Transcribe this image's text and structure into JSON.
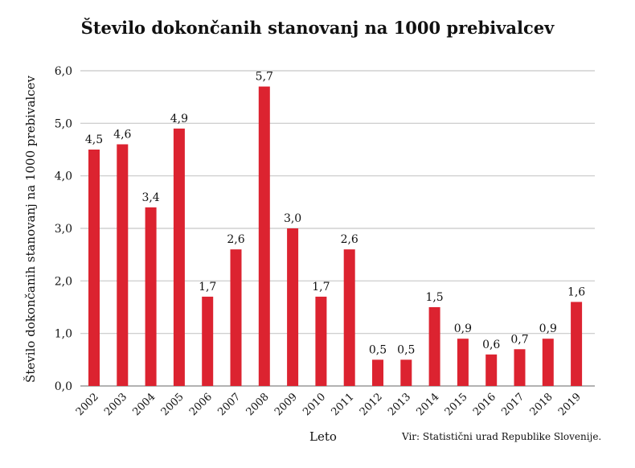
{
  "chart_data": {
    "type": "bar",
    "title": "Število dokončanih stanovanj na 1000 prebivalcev",
    "xlabel": "Leto",
    "ylabel": "Število dokončanih stanovanj na 1000 prebivalcev",
    "source": "Vir: Statistični urad Republike Slovenije.",
    "categories": [
      "2002",
      "2003",
      "2004",
      "2005",
      "2006",
      "2007",
      "2008",
      "2009",
      "2010",
      "2011",
      "2012",
      "2013",
      "2014",
      "2015",
      "2016",
      "2017",
      "2018",
      "2019"
    ],
    "values": [
      4.5,
      4.6,
      3.4,
      4.9,
      1.7,
      2.6,
      5.7,
      3.0,
      1.7,
      2.6,
      0.5,
      0.5,
      1.5,
      0.9,
      0.6,
      0.7,
      0.9,
      1.6
    ],
    "data_labels": [
      "4,5",
      "4,6",
      "3,4",
      "4,9",
      "1,7",
      "2,6",
      "5,7",
      "3,0",
      "1,7",
      "2,6",
      "0,5",
      "0,5",
      "1,5",
      "0,9",
      "0,6",
      "0,7",
      "0,9",
      "1,6"
    ],
    "ylim": [
      0,
      6
    ],
    "yticks": [
      "0,0",
      "1,0",
      "2,0",
      "3,0",
      "4,0",
      "5,0",
      "6,0"
    ],
    "grid": true,
    "bar_color": "#dc2330"
  }
}
